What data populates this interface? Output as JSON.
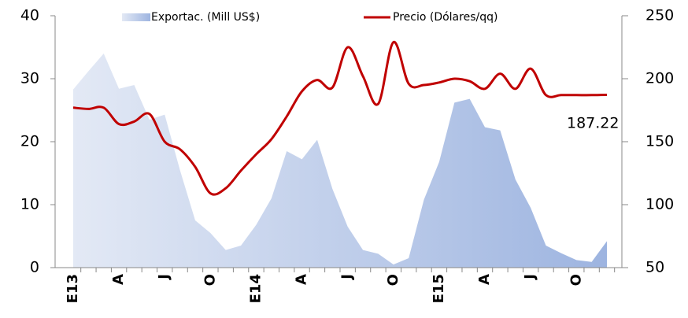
{
  "chart_data": {
    "type": "area_line",
    "categories": [
      "E13",
      null,
      null,
      "A",
      null,
      null,
      "J",
      null,
      null,
      "O",
      null,
      null,
      "E14",
      null,
      null,
      "A",
      null,
      null,
      "J",
      null,
      null,
      "O",
      null,
      null,
      "E15",
      null,
      null,
      "A",
      null,
      null,
      "J",
      null,
      null,
      "O",
      null,
      null
    ],
    "series": [
      {
        "name": "Exportac. (Mill US$)",
        "type": "area",
        "axis": "y",
        "color": "#9db4e0",
        "values": [
          28.3,
          31.2,
          34,
          28.4,
          29,
          23.5,
          24.3,
          15.5,
          7.5,
          5.5,
          2.8,
          3.5,
          6.8,
          11,
          18.5,
          17.2,
          20.3,
          12.5,
          6.5,
          2.8,
          2.2,
          0.5,
          1.5,
          10.8,
          16.8,
          26.2,
          26.8,
          22.3,
          21.8,
          14,
          9.5,
          3.5,
          2.3,
          1.2,
          0.9,
          4.2
        ]
      },
      {
        "name": "Precio (Dólares/qq)",
        "type": "line",
        "axis": "y2",
        "color": "#c00000",
        "values": [
          177,
          176,
          177,
          164,
          166,
          172,
          150,
          144,
          130,
          109,
          113,
          127,
          140,
          152,
          170,
          190,
          199,
          193,
          225,
          202,
          180,
          229,
          196,
          195,
          197,
          200,
          198,
          192,
          204,
          192,
          208,
          187,
          187,
          187,
          187,
          187.22
        ]
      }
    ],
    "ylim": [
      0,
      40
    ],
    "yticks": [
      0,
      10,
      20,
      30,
      40
    ],
    "y2lim": [
      50,
      250
    ],
    "y2ticks": [
      50,
      100,
      150,
      200,
      250
    ],
    "annotation": "187.22"
  }
}
